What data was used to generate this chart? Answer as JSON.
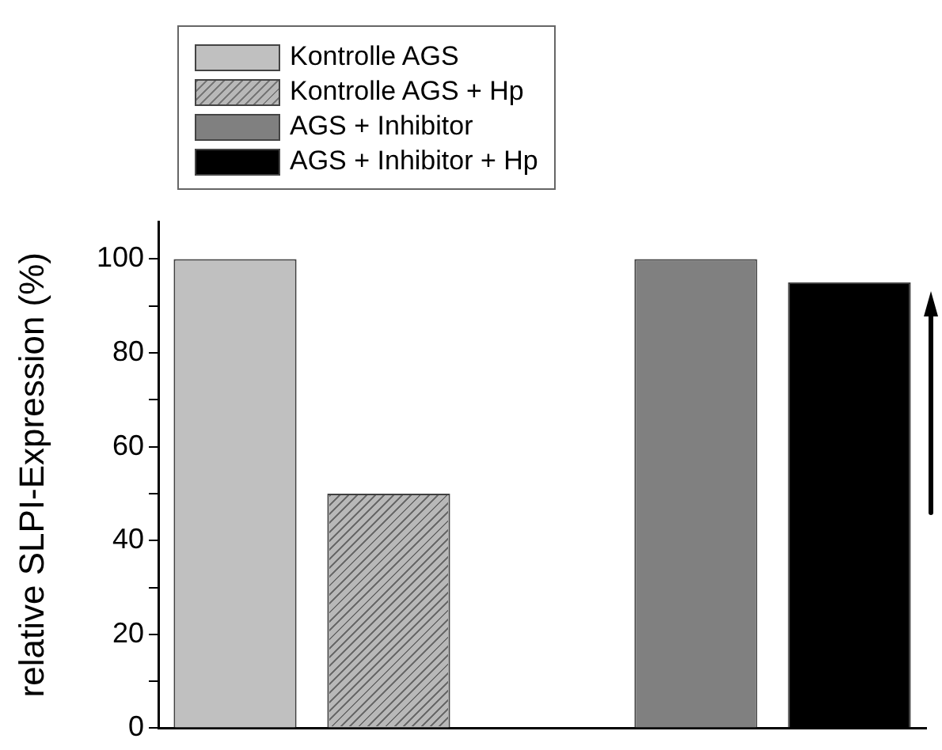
{
  "chart_data": {
    "type": "bar",
    "ylabel": "relative SLPI-Expression (%)",
    "categories": [
      null,
      null,
      null,
      null,
      null
    ],
    "series": [
      {
        "name": "Kontrolle AGS",
        "color": "#c0c0c0",
        "values": [
          100,
          null,
          null,
          null,
          null
        ]
      },
      {
        "name": "Kontrolle AGS + Hp",
        "color": "#b8b8b8",
        "values": [
          null,
          50,
          null,
          null,
          null
        ]
      },
      {
        "name": "AGS + Inhibitor",
        "color": "#808080",
        "values": [
          null,
          null,
          null,
          100,
          null
        ]
      },
      {
        "name": "AGS + Inhibitor + Hp",
        "color": "#000000",
        "values": [
          null,
          null,
          null,
          null,
          95
        ]
      }
    ],
    "ylim": [
      0,
      108
    ],
    "yticks": [
      0,
      {
        "value": 10,
        "label": null
      },
      20,
      {
        "value": 30,
        "label": null
      },
      40,
      {
        "value": 50,
        "label": null
      },
      60,
      {
        "value": 70,
        "label": null
      },
      80,
      {
        "value": 90,
        "label": null
      },
      100
    ],
    "grid": false,
    "legend": "top left",
    "tick_labels": "y"
  }
}
